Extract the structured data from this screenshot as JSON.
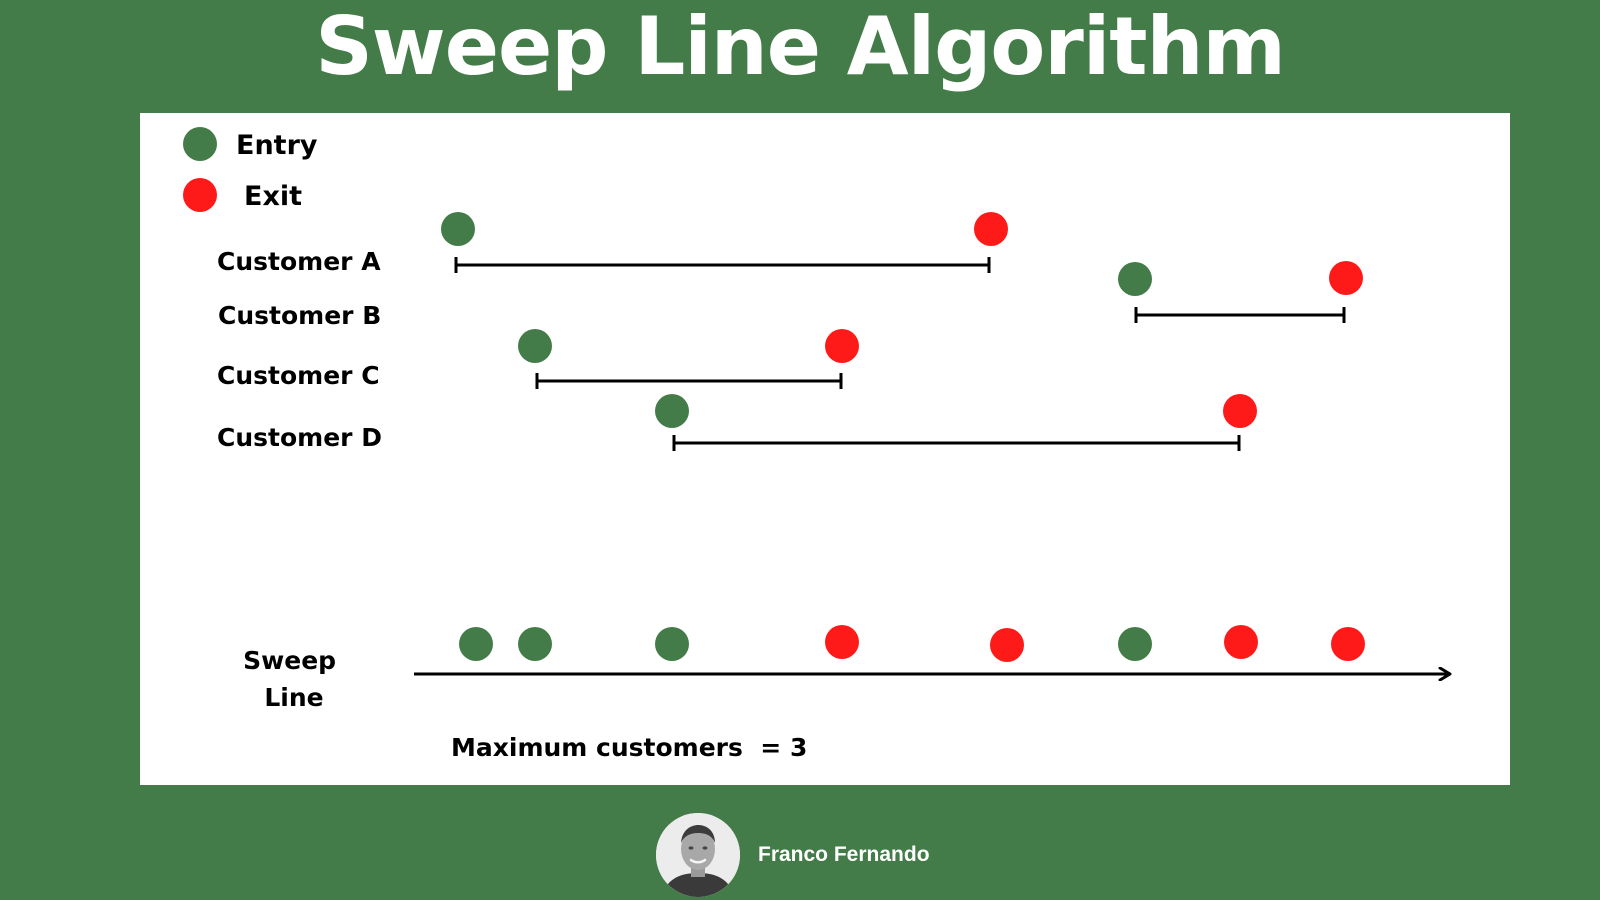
{
  "title": "Sweep Line Algorithm",
  "colors": {
    "background": "#437c48",
    "panel": "#ffffff",
    "entry": "#437c48",
    "exit": "#ff1a1a",
    "line": "#000000"
  },
  "legend": [
    {
      "label": "Entry",
      "color": "#437c48"
    },
    {
      "label": "Exit",
      "color": "#ff1a1a"
    }
  ],
  "customers": [
    {
      "label": "Customer A",
      "entry": 1,
      "exit": 5
    },
    {
      "label": "Customer B",
      "entry": 6,
      "exit": 8
    },
    {
      "label": "Customer C",
      "entry": 2,
      "exit": 4
    },
    {
      "label": "Customer D",
      "entry": 3,
      "exit": 7
    }
  ],
  "sweep_line": {
    "label_line1": "Sweep",
    "label_line2": "Line",
    "events": [
      {
        "type": "entry",
        "order": 1
      },
      {
        "type": "entry",
        "order": 2
      },
      {
        "type": "entry",
        "order": 3
      },
      {
        "type": "exit",
        "order": 4
      },
      {
        "type": "exit",
        "order": 5
      },
      {
        "type": "entry",
        "order": 6
      },
      {
        "type": "exit",
        "order": 7
      },
      {
        "type": "exit",
        "order": 8
      }
    ]
  },
  "result": "Maximum customers  = 3",
  "author": {
    "name": "Franco Fernando"
  },
  "icons": {
    "entry": "green-circle-icon",
    "exit": "red-circle-icon",
    "avatar": "person-avatar-icon"
  }
}
